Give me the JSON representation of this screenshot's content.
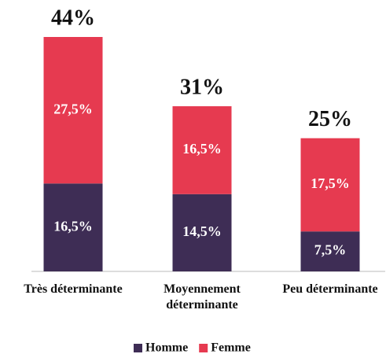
{
  "chart_data": {
    "type": "stacked-bar",
    "categories": [
      "Très déterminante",
      "Moyennement déterminante",
      "Peu déterminante"
    ],
    "series": [
      {
        "name": "Homme",
        "color": "#3e2d55",
        "values": [
          16.5,
          14.5,
          7.5
        ],
        "value_labels": [
          "16,5%",
          "14,5%",
          "7,5%"
        ]
      },
      {
        "name": "Femme",
        "color": "#e63a50",
        "values": [
          27.5,
          16.5,
          17.5
        ],
        "value_labels": [
          "27,5%",
          "16,5%",
          "17,5%"
        ]
      }
    ],
    "totals": [
      44,
      31,
      25
    ],
    "total_labels": [
      "44%",
      "31%",
      "25%"
    ]
  }
}
